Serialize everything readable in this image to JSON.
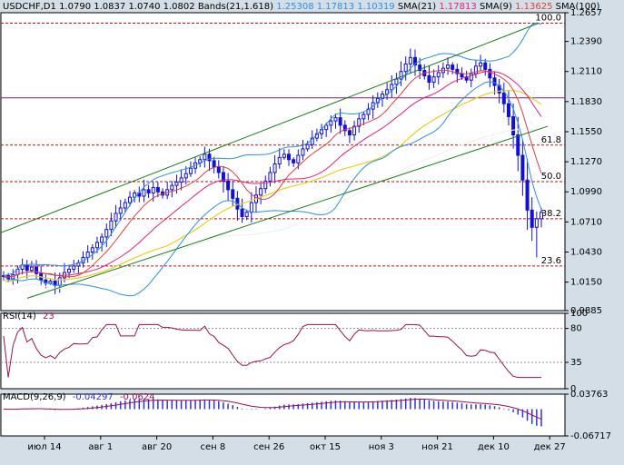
{
  "header": {
    "symbol": "USDCHF,D1",
    "ohlc": [
      "1.0790",
      "1.0837",
      "1.0740",
      "1.0802"
    ],
    "bands_label": "Bands(21,1.618)",
    "bands_values": [
      "1.25308",
      "1.17813",
      "1.10319"
    ],
    "sma21_label": "SMA(21)",
    "sma21_value": "1.17813",
    "sma9_label": "SMA(9)",
    "sma9_value": "1.13625",
    "sma100_label": "SMA(100)"
  },
  "colors": {
    "background": "#d4dee6",
    "panel_bg": "#ffffff",
    "candle": "#1010d8",
    "bands": "#2d8fe8",
    "sma21": "#e8207a",
    "sma9": "#e04040",
    "sma100": "#f0f0f0",
    "sma_yellow": "#e8d020",
    "channel": "#1a7a1a",
    "fib": "#c01010",
    "rsi": "#9a1050",
    "macd": "#3030e0",
    "macd_signal": "#9a1050"
  },
  "chart_data": [
    {
      "type": "candlestick",
      "title": "USDCHF,D1",
      "y_ticks": [
        "1.2657",
        "1.2390",
        "1.2110",
        "1.1830",
        "1.1550",
        "1.1270",
        "1.0990",
        "1.0710",
        "1.0430",
        "1.0150",
        "0.9885"
      ],
      "ylim": [
        0.9885,
        1.2657
      ],
      "x_ticks": [
        "июл 14",
        "авг 1",
        "авг 20",
        "сен 8",
        "сен 26",
        "окт 15",
        "ноя 3",
        "ноя 21",
        "дек 10",
        "дек 27"
      ],
      "fib_levels": [
        {
          "label": "100.0",
          "value": 1.256
        },
        {
          "label": "61.8",
          "value": 1.1425
        },
        {
          "label": "50.0",
          "value": 1.1085
        },
        {
          "label": "38.2",
          "value": 1.074
        },
        {
          "label": "23.6",
          "value": 1.03
        }
      ],
      "close": [
        1.021,
        1.018,
        1.022,
        1.027,
        1.031,
        1.026,
        1.029,
        1.023,
        1.017,
        1.014,
        1.016,
        1.012,
        1.019,
        1.024,
        1.027,
        1.03,
        1.033,
        1.038,
        1.043,
        1.047,
        1.052,
        1.057,
        1.064,
        1.072,
        1.079,
        1.084,
        1.089,
        1.094,
        1.098,
        1.095,
        1.101,
        1.098,
        1.103,
        1.099,
        1.096,
        1.101,
        1.105,
        1.108,
        1.112,
        1.116,
        1.121,
        1.126,
        1.129,
        1.134,
        1.128,
        1.122,
        1.117,
        1.109,
        1.101,
        1.093,
        1.083,
        1.076,
        1.08,
        1.089,
        1.096,
        1.102,
        1.109,
        1.117,
        1.125,
        1.131,
        1.134,
        1.129,
        1.126,
        1.133,
        1.139,
        1.143,
        1.149,
        1.153,
        1.157,
        1.161,
        1.165,
        1.168,
        1.161,
        1.156,
        1.152,
        1.16,
        1.167,
        1.171,
        1.176,
        1.182,
        1.186,
        1.19,
        1.194,
        1.199,
        1.204,
        1.211,
        1.218,
        1.224,
        1.217,
        1.212,
        1.207,
        1.201,
        1.206,
        1.21,
        1.214,
        1.217,
        1.213,
        1.209,
        1.206,
        1.203,
        1.209,
        1.216,
        1.219,
        1.213,
        1.205,
        1.198,
        1.191,
        1.181,
        1.169,
        1.152,
        1.133,
        1.11,
        1.082,
        1.066,
        1.074,
        1.08
      ],
      "series": [
        {
          "name": "Bands(21,1.618)",
          "values": []
        },
        {
          "name": "SMA(21)",
          "values": []
        },
        {
          "name": "SMA(9)",
          "values": []
        },
        {
          "name": "SMA(100)",
          "values": []
        }
      ]
    },
    {
      "type": "line",
      "title": "RSI(14)",
      "current_value": "23",
      "y_ticks": [
        "100",
        "80",
        "35",
        "0"
      ],
      "ylim": [
        0,
        100
      ]
    },
    {
      "type": "bar",
      "title": "MACD(9,26,9)",
      "values_text": [
        "-0.04297",
        "-0.0624"
      ],
      "y_ticks": [
        "0.03763",
        "-0.06717"
      ],
      "ylim": [
        -0.06717,
        0.03763
      ]
    }
  ],
  "rsi_label": "RSI(14)",
  "rsi_value": "23",
  "macd_label": "MACD(9,26,9)",
  "macd_v1": "-0.04297",
  "macd_v2": "-0.0624"
}
